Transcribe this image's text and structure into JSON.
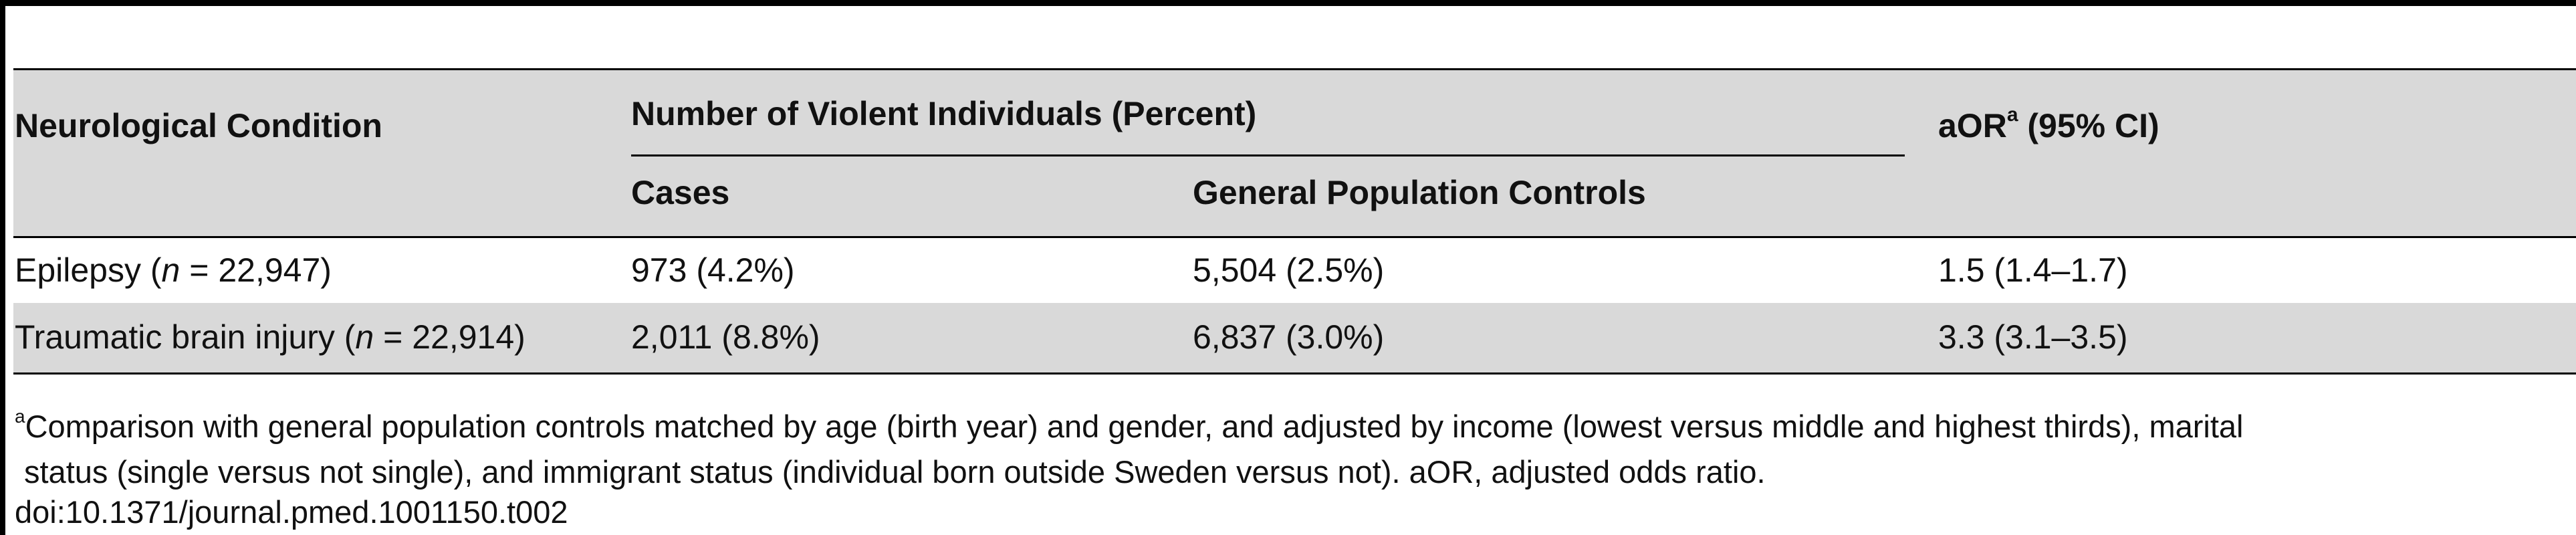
{
  "table": {
    "headers": {
      "condition": "Neurological Condition",
      "group": "Number of Violent Individuals (Percent)",
      "cases": "Cases",
      "controls": "General Population Controls",
      "aor_label": "aOR",
      "aor_sup": "a",
      "aor_ci": "(95% CI)"
    },
    "rows": [
      {
        "condition_name": "Epilepsy (",
        "n_symbol": "n",
        "n_value": " = 22,947)",
        "cases": "973 (4.2%)",
        "controls": "5,504 (2.5%)",
        "aor": "1.5 (1.4–1.7)"
      },
      {
        "condition_name": "Traumatic brain injury (",
        "n_symbol": "n",
        "n_value": " = 22,914)",
        "cases": "2,011 (8.8%)",
        "controls": "6,837 (3.0%)",
        "aor": "3.3 (3.1–3.5)"
      }
    ]
  },
  "footnote": {
    "marker": "a",
    "line1": "Comparison with general population controls matched by age (birth year) and gender, and adjusted by income (lowest versus middle and highest thirds), marital",
    "line2": "status (single versus not single), and immigrant status (individual born outside Sweden versus not). aOR, adjusted odds ratio."
  },
  "doi": "doi:10.1371/journal.pmed.1001150.t002"
}
